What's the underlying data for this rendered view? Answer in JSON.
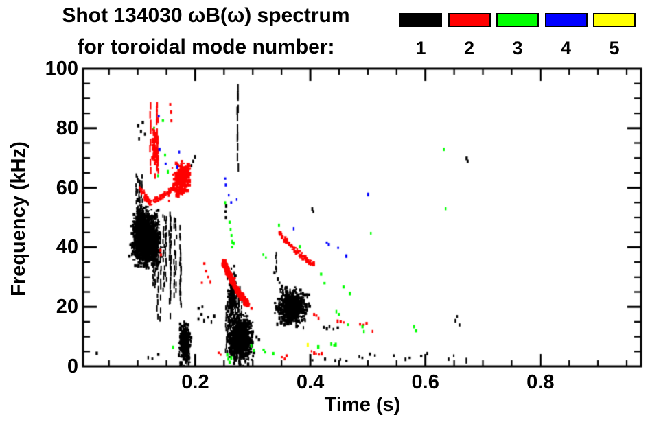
{
  "figure": {
    "title_line1": "Shot 134030 ωB(ω) spectrum",
    "title_line2": "for toroidal mode number:",
    "background": "#ffffff",
    "frame_color": "#000000"
  },
  "legend": {
    "items": [
      {
        "label": "1",
        "color": "#000000"
      },
      {
        "label": "2",
        "color": "#ff0000"
      },
      {
        "label": "3",
        "color": "#00ff00"
      },
      {
        "label": "4",
        "color": "#0000ff"
      },
      {
        "label": "5",
        "color": "#ffff00"
      }
    ]
  },
  "axes": {
    "x": {
      "label": "Time (s)",
      "tick_labels": [
        "0.2",
        "0.4",
        "0.6",
        "0.8"
      ],
      "tick_values": [
        0.2,
        0.4,
        0.6,
        0.8
      ],
      "minor_step": 0.05
    },
    "y": {
      "label": "Frequency (kHz)",
      "tick_labels": [
        "0",
        "20",
        "40",
        "60",
        "80",
        "100"
      ],
      "tick_values": [
        0,
        20,
        40,
        60,
        80,
        100
      ],
      "minor_step": 5
    }
  },
  "chart_data": {
    "type": "scatter",
    "title": "Shot 134030 ωB(ω) spectrum for toroidal mode number: 1-5",
    "xlabel": "Time (s)",
    "ylabel": "Frequency (kHz)",
    "xlim": [
      0.005,
      0.975
    ],
    "ylim": [
      0,
      100
    ],
    "grid": false,
    "legend_position": "top-right",
    "series": [
      {
        "name": "mode n=1",
        "color": "#000000",
        "features": [
          {
            "kind": "cloud",
            "t": 0.113,
            "f": 43,
            "st": 0.014,
            "sf": 5.2,
            "n": 1400,
            "w": 3,
            "h": 4
          },
          {
            "kind": "cloud",
            "t": 0.105,
            "f": 47,
            "st": 0.007,
            "sf": 4,
            "n": 300,
            "w": 3,
            "h": 3
          },
          {
            "kind": "streaks",
            "t0": 0.125,
            "t1": 0.175,
            "f0": 16,
            "f1": 54,
            "count": 16,
            "segs": 14,
            "w": 2
          },
          {
            "kind": "streaks",
            "t0": 0.094,
            "t1": 0.108,
            "f0": 52,
            "f1": 66,
            "count": 6,
            "segs": 7,
            "w": 2
          },
          {
            "kind": "dots",
            "pts": [
              [
                0.102,
                76.5
              ],
              [
                0.105,
                79
              ],
              [
                0.108,
                82
              ],
              [
                0.1,
                81
              ],
              [
                0.112,
                78
              ],
              [
                0.028,
                4.5
              ],
              [
                0.118,
                3
              ],
              [
                0.125,
                2.5
              ],
              [
                0.135,
                4
              ]
            ]
          },
          {
            "kind": "cloud",
            "t": 0.18,
            "f": 8,
            "st": 0.0055,
            "sf": 3.8,
            "n": 380,
            "w": 3,
            "h": 4
          },
          {
            "kind": "dots",
            "pts": [
              [
                0.205,
                16
              ],
              [
                0.21,
                17.5
              ],
              [
                0.215,
                15.5
              ],
              [
                0.222,
                16.5
              ],
              [
                0.228,
                15
              ],
              [
                0.232,
                17
              ],
              [
                0.205,
                19.5
              ],
              [
                0.212,
                20
              ]
            ]
          },
          {
            "kind": "cloud",
            "t": 0.276,
            "f": 10,
            "st": 0.012,
            "sf": 4.5,
            "n": 900,
            "w": 3,
            "h": 4
          },
          {
            "kind": "cloud",
            "t": 0.263,
            "f": 24,
            "st": 0.005,
            "sf": 5,
            "n": 260,
            "w": 2.5,
            "h": 3.5
          },
          {
            "kind": "streaks",
            "t0": 0.252,
            "t1": 0.288,
            "f0": 2,
            "f1": 30,
            "count": 9,
            "segs": 10,
            "w": 1.8
          },
          {
            "kind": "streaks",
            "t0": 0.2705,
            "t1": 0.2735,
            "f0": 50,
            "f1": 99,
            "count": 2,
            "segs": 9,
            "w": 2
          },
          {
            "kind": "dots",
            "pts": [
              [
                0.252,
                52
              ],
              [
                0.253,
                54
              ],
              [
                0.2525,
                50
              ],
              [
                0.193,
                67.5
              ],
              [
                0.196,
                69
              ],
              [
                0.199,
                70.5
              ],
              [
                0.403,
                53
              ],
              [
                0.405,
                52
              ]
            ]
          },
          {
            "kind": "cloud",
            "t": 0.366,
            "f": 20.5,
            "st": 0.015,
            "sf": 3.4,
            "n": 700,
            "w": 3,
            "h": 4
          },
          {
            "kind": "streaks",
            "t0": 0.3385,
            "t1": 0.3395,
            "f0": 30,
            "f1": 43,
            "count": 1,
            "segs": 5,
            "w": 1.8
          },
          {
            "kind": "dots",
            "pts": [
              [
                0.337,
                31.5
              ],
              [
                0.34,
                33
              ],
              [
                0.343,
                29.5
              ],
              [
                0.346,
                28
              ],
              [
                0.35,
                27
              ]
            ]
          },
          {
            "kind": "dots",
            "pts": [
              [
                0.423,
                13.2
              ],
              [
                0.428,
                12.8
              ],
              [
                0.433,
                13.5
              ],
              [
                0.44,
                12.5
              ],
              [
                0.447,
                13
              ]
            ]
          },
          {
            "kind": "dots",
            "pts": [
              [
                0.297,
                4.8
              ],
              [
                0.3,
                3.5
              ],
              [
                0.306,
                10
              ],
              [
                0.31,
                9
              ],
              [
                0.403,
                2
              ],
              [
                0.425,
                2.5
              ],
              [
                0.443,
                2
              ],
              [
                0.452,
                2.3
              ],
              [
                0.462,
                1.8
              ],
              [
                0.485,
                3.3
              ],
              [
                0.49,
                2.8
              ],
              [
                0.503,
                4.2
              ],
              [
                0.512,
                3.6
              ],
              [
                0.545,
                3.6
              ],
              [
                0.565,
                2.5
              ],
              [
                0.572,
                2.8
              ],
              [
                0.592,
                3.4
              ],
              [
                0.603,
                4.4
              ],
              [
                0.64,
                2.5
              ],
              [
                0.652,
                15.5
              ],
              [
                0.655,
                16.8
              ],
              [
                0.659,
                14
              ],
              [
                0.671,
                70
              ],
              [
                0.673,
                69
              ]
            ]
          },
          {
            "kind": "streaks",
            "t0": 0.647,
            "t1": 0.6475,
            "f0": 2.5,
            "f1": 5,
            "count": 1,
            "segs": 2,
            "w": 2
          },
          {
            "kind": "streaks",
            "t0": 0.671,
            "t1": 0.6715,
            "f0": 1,
            "f1": 8,
            "count": 1,
            "segs": 2,
            "w": 2.2
          }
        ]
      },
      {
        "name": "mode n=2",
        "color": "#ff0000",
        "features": [
          {
            "kind": "streaks",
            "t0": 0.119,
            "t1": 0.136,
            "f0": 63,
            "f1": 91,
            "count": 5,
            "segs": 9,
            "w": 2.2
          },
          {
            "kind": "cloud",
            "t": 0.128,
            "f": 74,
            "st": 0.003,
            "sf": 4,
            "n": 80,
            "w": 3,
            "h": 4
          },
          {
            "kind": "dots",
            "pts": [
              [
                0.156,
                88
              ],
              [
                0.1575,
                85.5
              ],
              [
                0.158,
                82.5
              ],
              [
                0.1535,
                57.5
              ],
              [
                0.154,
                55.5
              ],
              [
                0.139,
                39
              ],
              [
                0.1395,
                37.5
              ],
              [
                0.24,
                4.5
              ],
              [
                0.244,
                3.8
              ],
              [
                0.35,
                3
              ],
              [
                0.355,
                2.5
              ],
              [
                0.358,
                3.6
              ]
            ]
          },
          {
            "kind": "chirp",
            "pts": [
              [
                0.102,
                60.5
              ],
              [
                0.112,
                57
              ],
              [
                0.12,
                55
              ],
              [
                0.132,
                56.5
              ],
              [
                0.145,
                58
              ],
              [
                0.157,
                59.5
              ]
            ],
            "n": 110,
            "w": 3,
            "h": 3
          },
          {
            "kind": "cloud",
            "t": 0.174,
            "f": 63.5,
            "st": 0.0075,
            "sf": 3,
            "n": 300,
            "w": 3.5,
            "h": 4.5
          },
          {
            "kind": "chirp",
            "pts": [
              [
                0.159,
                60
              ],
              [
                0.186,
                67
              ]
            ],
            "n": 90,
            "w": 4,
            "h": 4
          },
          {
            "kind": "chirp",
            "pts": [
              [
                0.247,
                35.5
              ],
              [
                0.258,
                30.5
              ],
              [
                0.272,
                25.5
              ],
              [
                0.288,
                21.5
              ]
            ],
            "n": 230,
            "w": 4,
            "h": 4.5
          },
          {
            "kind": "dots",
            "pts": [
              [
                0.292,
                20.5
              ],
              [
                0.297,
                19.5
              ],
              [
                0.215,
                34.5
              ],
              [
                0.218,
                32
              ],
              [
                0.222,
                30
              ],
              [
                0.226,
                28.5
              ],
              [
                0.211,
                28
              ]
            ]
          },
          {
            "kind": "chirp",
            "pts": [
              [
                0.345,
                45
              ],
              [
                0.362,
                41.5
              ],
              [
                0.38,
                38
              ],
              [
                0.405,
                34.5
              ]
            ],
            "n": 85,
            "w": 3,
            "h": 3.5
          },
          {
            "kind": "dots",
            "pts": [
              [
                0.406,
                17.5
              ],
              [
                0.41,
                17
              ],
              [
                0.414,
                16.2
              ],
              [
                0.447,
                15.3
              ],
              [
                0.452,
                15
              ],
              [
                0.458,
                14.7
              ],
              [
                0.486,
                14.2
              ],
              [
                0.492,
                13.9
              ],
              [
                0.497,
                14.5
              ],
              [
                0.508,
                11.8
              ],
              [
                0.402,
                5
              ],
              [
                0.406,
                4.6
              ],
              [
                0.41,
                4.2
              ],
              [
                0.415,
                3.9
              ],
              [
                0.419,
                4.4
              ]
            ]
          }
        ]
      },
      {
        "name": "mode n=3",
        "color": "#00ff00",
        "features": [
          {
            "kind": "dots",
            "pts": [
              [
                0.128,
                80
              ],
              [
                0.143,
                82.5
              ],
              [
                0.135,
                64
              ],
              [
                0.147,
                71
              ],
              [
                0.152,
                65.5
              ],
              [
                0.161,
                6.5
              ],
              [
                0.259,
                48.5
              ],
              [
                0.261,
                46
              ],
              [
                0.2625,
                44
              ],
              [
                0.264,
                42
              ],
              [
                0.2635,
                40
              ],
              [
                0.266,
                41.5
              ],
              [
                0.2515,
                55
              ],
              [
                0.255,
                4
              ],
              [
                0.257,
                2.5
              ],
              [
                0.259,
                1.5
              ],
              [
                0.262,
                3
              ],
              [
                0.297,
                7
              ],
              [
                0.301,
                5.5
              ],
              [
                0.318,
                5.5
              ],
              [
                0.321,
                4.8
              ],
              [
                0.335,
                4.4
              ],
              [
                0.318,
                37.5
              ],
              [
                0.3225,
                36.5
              ],
              [
                0.345,
                47.5
              ],
              [
                0.381,
                40.3
              ],
              [
                0.413,
                6.7
              ],
              [
                0.418,
                31
              ],
              [
                0.424,
                27.9
              ],
              [
                0.436,
                7.6
              ],
              [
                0.441,
                7
              ],
              [
                0.4435,
                7.5
              ],
              [
                0.445,
                18.5
              ],
              [
                0.449,
                17.5
              ],
              [
                0.457,
                26.7
              ],
              [
                0.468,
                24.6
              ],
              [
                0.465,
                14
              ],
              [
                0.49,
                13.5
              ],
              [
                0.493,
                11.8
              ],
              [
                0.505,
                44.7
              ],
              [
                0.58,
                13.5
              ],
              [
                0.583,
                12
              ],
              [
                0.632,
                73
              ],
              [
                0.635,
                53
              ]
            ]
          }
        ]
      },
      {
        "name": "mode n=4",
        "color": "#0000ff",
        "features": [
          {
            "kind": "dots",
            "pts": [
              [
                0.136,
                84
              ],
              [
                0.137,
                73
              ],
              [
                0.148,
                68
              ],
              [
                0.168,
                67
              ],
              [
                0.172,
                72
              ],
              [
                0.2515,
                63
              ],
              [
                0.2525,
                61
              ],
              [
                0.258,
                57.5
              ],
              [
                0.262,
                55
              ],
              [
                0.272,
                56
              ],
              [
                0.371,
                46.3
              ],
              [
                0.428,
                41.5
              ],
              [
                0.4315,
                41
              ],
              [
                0.448,
                39.7
              ],
              [
                0.462,
                37.2
              ],
              [
                0.5,
                57.9
              ]
            ]
          }
        ]
      },
      {
        "name": "mode n=5",
        "color": "#ffff00",
        "features": [
          {
            "kind": "dots",
            "pts": [
              [
                0.395,
                7.4
              ]
            ]
          }
        ]
      }
    ]
  }
}
